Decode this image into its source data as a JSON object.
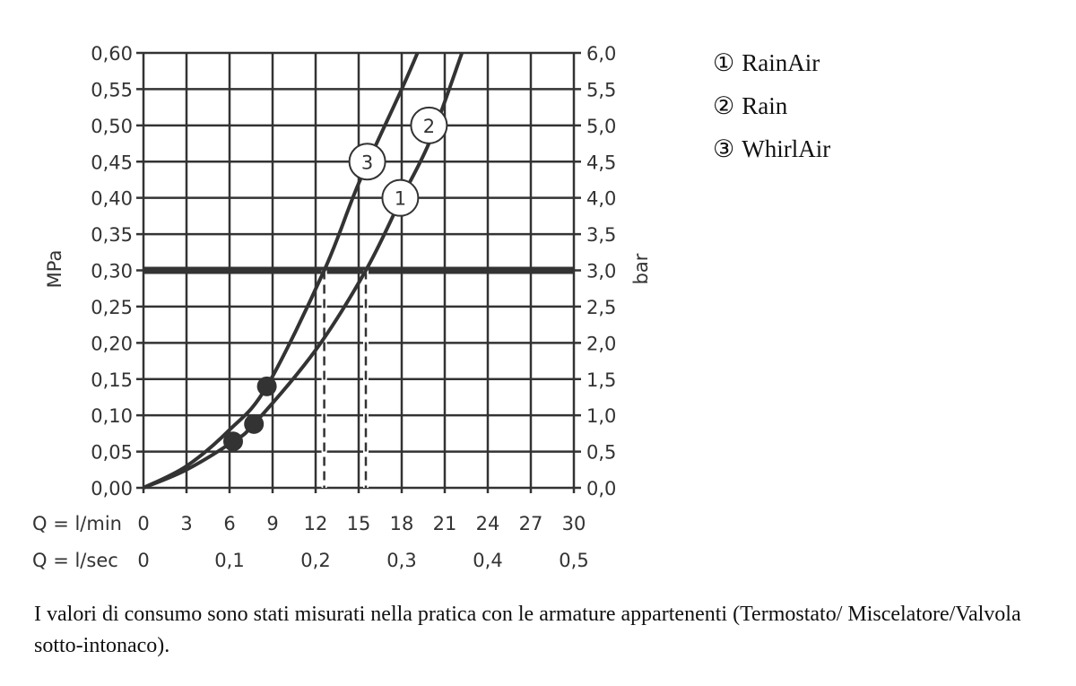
{
  "chart_data": {
    "type": "line",
    "title": "",
    "ylabel_left": "MPa",
    "ylabel_right": "bar",
    "xlabel_rows": [
      {
        "label": "Q = l/min",
        "ticks": [
          "0",
          "3",
          "6",
          "9",
          "12",
          "15",
          "18",
          "21",
          "24",
          "27",
          "30"
        ],
        "values": [
          0,
          3,
          6,
          9,
          12,
          15,
          18,
          21,
          24,
          27,
          30
        ]
      },
      {
        "label": "Q = l/sec",
        "ticks": [
          "0",
          "0,1",
          "0,2",
          "0,3",
          "0,4",
          "0,5"
        ],
        "values": [
          0,
          6,
          12,
          18,
          24,
          30
        ]
      }
    ],
    "xlim": [
      0,
      30
    ],
    "ylim": [
      0,
      0.6
    ],
    "yticks_left": [
      "0,00",
      "0,05",
      "0,10",
      "0,15",
      "0,20",
      "0,25",
      "0,30",
      "0,35",
      "0,40",
      "0,45",
      "0,50",
      "0,55",
      "0,60"
    ],
    "yticks_right": [
      "0,0",
      "0,5",
      "1,0",
      "1,5",
      "2,0",
      "2,5",
      "3,0",
      "3,5",
      "4,0",
      "4,5",
      "5,0",
      "5,5",
      "6,0"
    ],
    "grid": true,
    "reference_line": {
      "y": 0.3,
      "style": "bold"
    },
    "dashed_markers": [
      {
        "x": 12.6,
        "y": 0.3
      },
      {
        "x": 15.5,
        "y": 0.3
      }
    ],
    "series": [
      {
        "labels": [
          "3"
        ],
        "label_at": [
          [
            15.6,
            0.45
          ]
        ],
        "x": [
          0,
          3,
          6,
          8.6,
          12.6,
          15,
          18,
          19.1
        ],
        "y": [
          0,
          0.03,
          0.08,
          0.14,
          0.3,
          0.42,
          0.55,
          0.6
        ],
        "dots": [
          [
            8.6,
            0.14
          ]
        ]
      },
      {
        "labels": [
          "1",
          "2"
        ],
        "label_at": [
          [
            17.9,
            0.4
          ],
          [
            19.9,
            0.5
          ]
        ],
        "x": [
          0,
          3,
          6.25,
          7.7,
          12,
          15.5,
          18,
          20,
          22.2
        ],
        "y": [
          0,
          0.025,
          0.064,
          0.088,
          0.19,
          0.3,
          0.4,
          0.48,
          0.6
        ],
        "dots": [
          [
            6.25,
            0.064
          ],
          [
            7.7,
            0.088
          ]
        ]
      }
    ],
    "color": "#333333"
  },
  "legend": [
    {
      "num": "①",
      "name": "RainAir"
    },
    {
      "num": "②",
      "name": "Rain"
    },
    {
      "num": "③",
      "name": "WhirlAir"
    }
  ],
  "caption": "I valori di consumo sono stati misurati nella pratica con le armature appartenenti (Termostato/ Miscelatore/Valvola sotto-intonaco)."
}
